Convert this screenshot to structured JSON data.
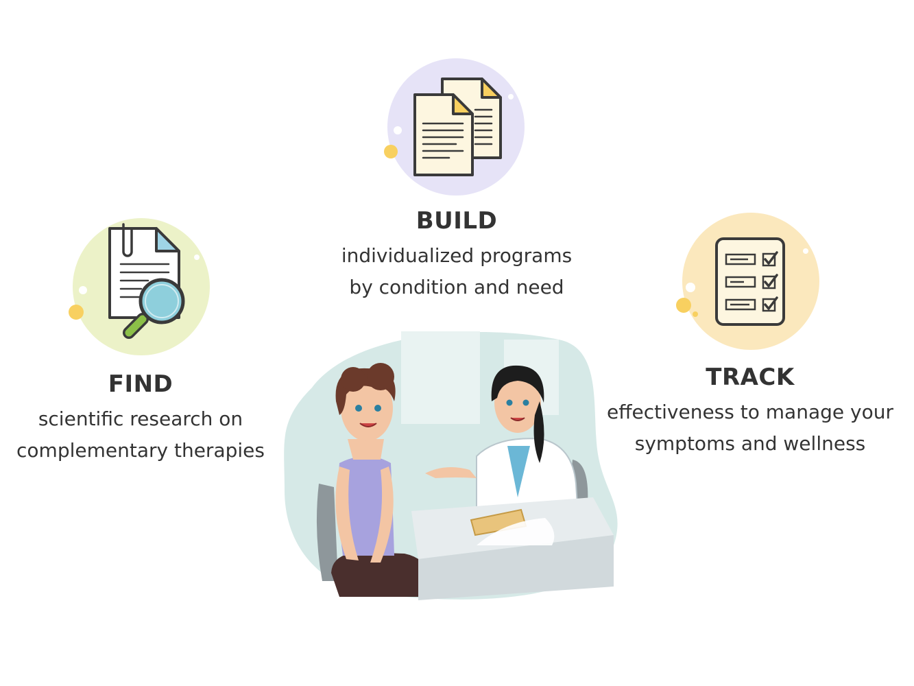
{
  "colors": {
    "find_circle": "#ecf2c8",
    "build_circle": "#e6e3f7",
    "track_circle": "#fbe8bd",
    "accent_yellow": "#f8d060",
    "heading_text": "#333333",
    "scene_background": "#d6e9e7"
  },
  "steps": [
    {
      "heading": "FIND",
      "line1": "scientific research on",
      "line2": "complementary therapies",
      "icon": "document-magnifier-icon"
    },
    {
      "heading": "BUILD",
      "line1": "individualized programs",
      "line2": "by condition and need",
      "icon": "documents-icon"
    },
    {
      "heading": "TRACK",
      "line1": "effectiveness to manage your",
      "line2": "symptoms and wellness",
      "icon": "checklist-icon"
    }
  ],
  "illustration": "patient-doctor-consultation-illustration"
}
